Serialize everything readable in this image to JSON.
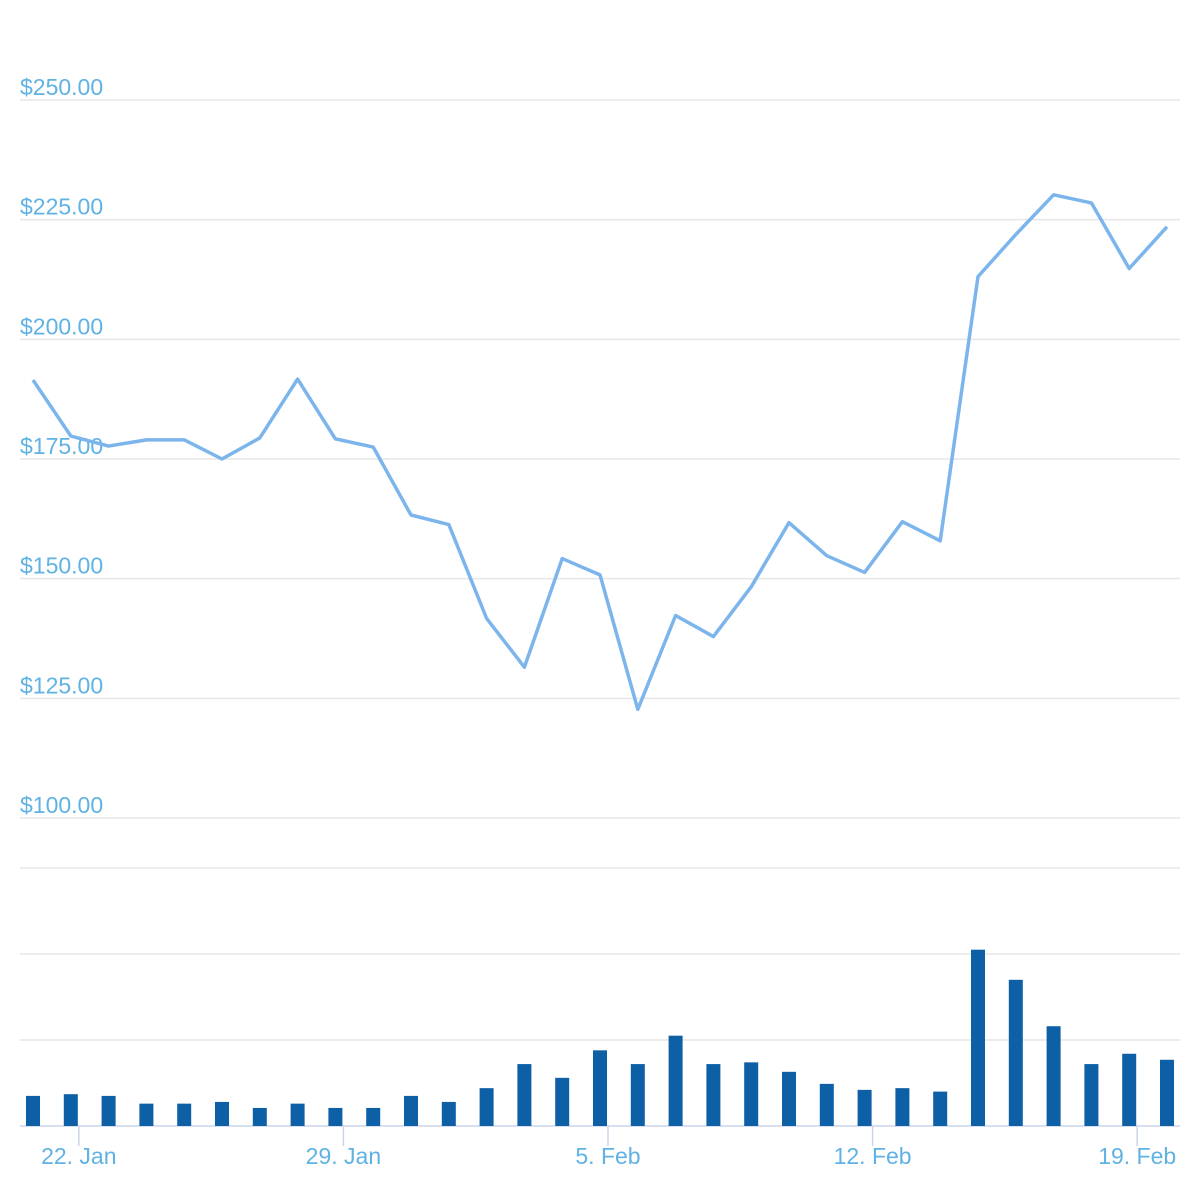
{
  "chart_data": {
    "type": "line",
    "categories": [
      null,
      "22. Jan",
      null,
      null,
      null,
      null,
      null,
      null,
      "29. Jan",
      null,
      null,
      null,
      null,
      null,
      null,
      "5. Feb",
      null,
      null,
      null,
      null,
      null,
      null,
      "12. Feb",
      null,
      null,
      null,
      null,
      null,
      null,
      "19. Feb",
      null
    ],
    "series": [
      {
        "type": "line",
        "color": "#7cb5ec",
        "axis": "y",
        "values": [
          191.5,
          179.8,
          177.7,
          179,
          179,
          175,
          179.4,
          191.7,
          179.2,
          177.5,
          163.3,
          161.3,
          141.7,
          131.5,
          154.2,
          150.8,
          122.7,
          142.3,
          137.9,
          148.3,
          161.7,
          154.8,
          151.3,
          161.9,
          157.9,
          213.1,
          221.9,
          230.2,
          228.5,
          214.8,
          223.5
        ]
      },
      {
        "type": "bar",
        "color": "#0d5fa6",
        "axis": "y2",
        "values": [
          35,
          37,
          35,
          26,
          26,
          28,
          21,
          26,
          21,
          21,
          35,
          28,
          44,
          72,
          56,
          88,
          72,
          105,
          72,
          74,
          63,
          49,
          42,
          44,
          40,
          205,
          170,
          116,
          72,
          84,
          77
        ]
      }
    ],
    "ylim": [
      100,
      250
    ],
    "yticks": [
      {
        "value": 100,
        "label": "$100.00"
      },
      {
        "value": 125,
        "label": "$125.00"
      },
      {
        "value": 150,
        "label": "$150.00"
      },
      {
        "value": 175,
        "label": "$175.00"
      },
      {
        "value": 200,
        "label": "$200.00"
      },
      {
        "value": 225,
        "label": "$225.00"
      },
      {
        "value": 250,
        "label": "$250.00"
      }
    ],
    "y2lim": [
      0,
      300
    ],
    "y2ticks": [
      0,
      100,
      200,
      300
    ],
    "grid": true
  }
}
